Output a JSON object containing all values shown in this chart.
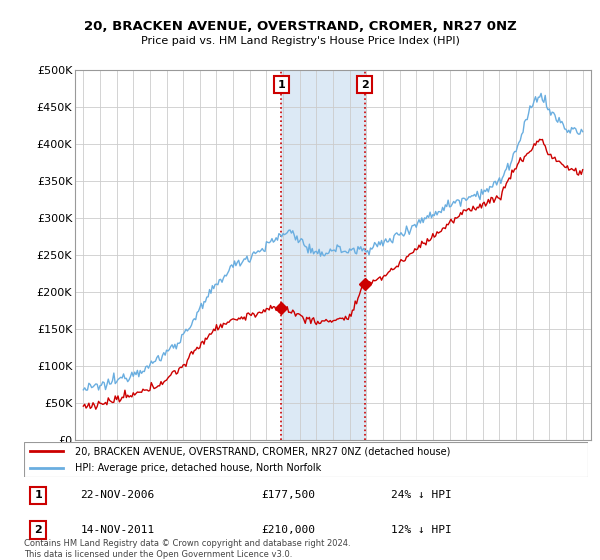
{
  "title": "20, BRACKEN AVENUE, OVERSTRAND, CROMER, NR27 0NZ",
  "subtitle": "Price paid vs. HM Land Registry's House Price Index (HPI)",
  "legend_line1": "20, BRACKEN AVENUE, OVERSTRAND, CROMER, NR27 0NZ (detached house)",
  "legend_line2": "HPI: Average price, detached house, North Norfolk",
  "annotation1": {
    "num": "1",
    "date": "22-NOV-2006",
    "price": "£177,500",
    "pct": "24% ↓ HPI",
    "x_year": 2006.9,
    "y_val": 177500
  },
  "annotation2": {
    "num": "2",
    "date": "14-NOV-2011",
    "price": "£210,000",
    "pct": "12% ↓ HPI",
    "x_year": 2011.9,
    "y_val": 210000
  },
  "footer": "Contains HM Land Registry data © Crown copyright and database right 2024.\nThis data is licensed under the Open Government Licence v3.0.",
  "hpi_color": "#6aaee0",
  "price_color": "#cc0000",
  "highlight_color": "#dce9f5",
  "grid_color": "#cccccc",
  "background_color": "#ffffff",
  "ylim": [
    0,
    500000
  ],
  "yticks": [
    0,
    50000,
    100000,
    150000,
    200000,
    250000,
    300000,
    350000,
    400000,
    450000,
    500000
  ],
  "ytick_labels": [
    "£0",
    "£50K",
    "£100K",
    "£150K",
    "£200K",
    "£250K",
    "£300K",
    "£350K",
    "£400K",
    "£450K",
    "£500K"
  ],
  "xlim_start": 1994.5,
  "xlim_end": 2025.5
}
